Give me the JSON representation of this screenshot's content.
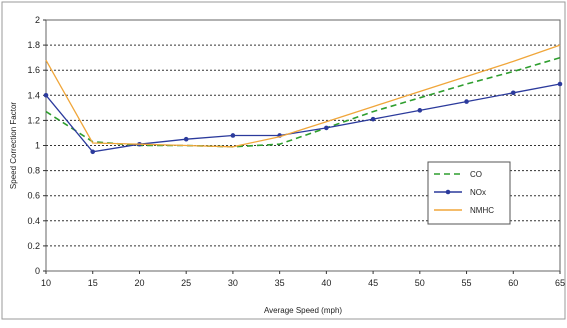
{
  "chart_data": {
    "type": "line",
    "title": "",
    "xlabel": "Average Speed (mph)",
    "ylabel": "Speed Correction Factor",
    "x": [
      10,
      15,
      20,
      25,
      30,
      35,
      40,
      45,
      50,
      55,
      60,
      65
    ],
    "x_ticks": [
      "10",
      "15",
      "20",
      "25",
      "30",
      "35",
      "40",
      "45",
      "50",
      "55",
      "60",
      "65"
    ],
    "y_ticks": [
      "0",
      "0.2",
      "0.4",
      "0.6",
      "0.8",
      "1",
      "1.2",
      "1.4",
      "1.6",
      "1.8",
      "2"
    ],
    "xlim": [
      10,
      65
    ],
    "ylim": [
      0,
      2
    ],
    "grid": "horizontal dashed",
    "legend_position": "right",
    "series": [
      {
        "name": "CO",
        "color": "#2e9e2e",
        "style": "dashed",
        "marker": "none",
        "values": [
          1.27,
          1.03,
          1.0,
          1.0,
          0.99,
          1.01,
          1.14,
          1.27,
          1.38,
          1.49,
          1.59,
          1.7
        ]
      },
      {
        "name": "NOx",
        "color": "#2b3a9c",
        "style": "solid",
        "marker": "circle",
        "values": [
          1.4,
          0.95,
          1.01,
          1.05,
          1.08,
          1.08,
          1.14,
          1.21,
          1.28,
          1.35,
          1.42,
          1.49
        ]
      },
      {
        "name": "NMHC",
        "color": "#f0a63a",
        "style": "solid",
        "marker": "none",
        "values": [
          1.68,
          1.02,
          1.01,
          1.0,
          0.99,
          1.07,
          1.19,
          1.31,
          1.43,
          1.55,
          1.67,
          1.8
        ]
      }
    ]
  }
}
